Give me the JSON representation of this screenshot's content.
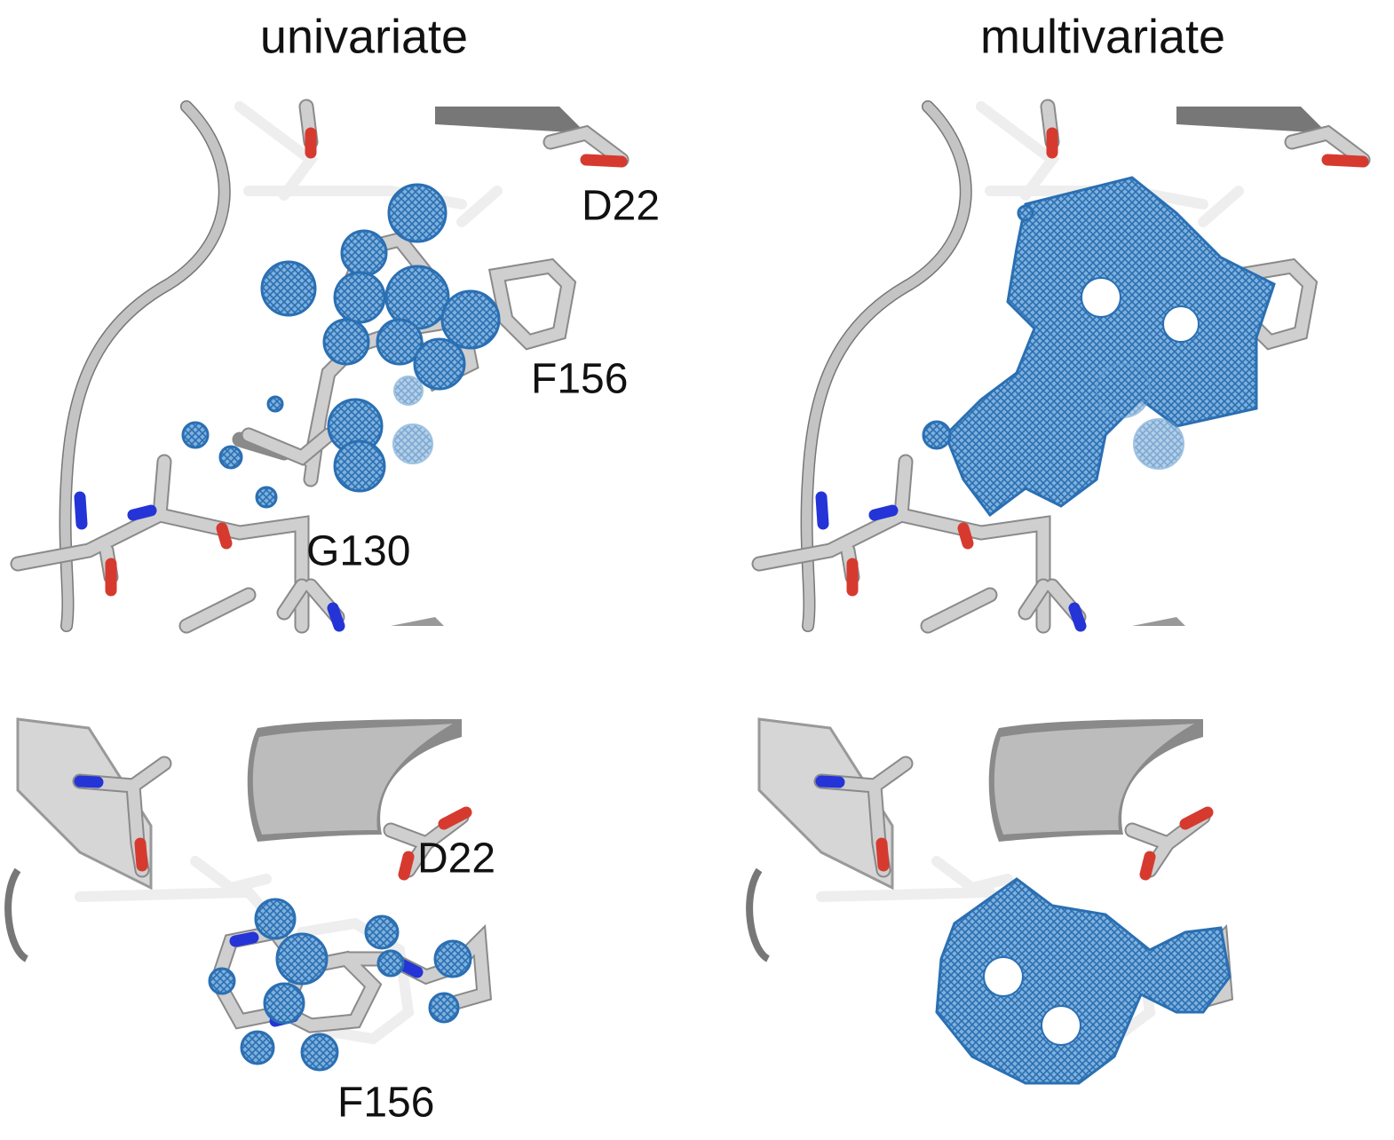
{
  "columns": [
    "univariate",
    "multivariate"
  ],
  "panels": [
    {
      "labels": [
        "D22",
        "F156",
        "G130"
      ]
    },
    {
      "labels": [
        "D22",
        "F156"
      ]
    }
  ]
}
